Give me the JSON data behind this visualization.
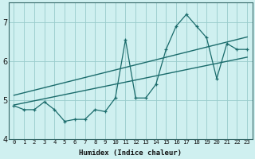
{
  "xlabel": "Humidex (Indice chaleur)",
  "background_color": "#cff0f0",
  "grid_color": "#99cccc",
  "line_color": "#1a6b6b",
  "x_data": [
    0,
    1,
    2,
    3,
    4,
    5,
    6,
    7,
    8,
    9,
    10,
    11,
    12,
    13,
    14,
    15,
    16,
    17,
    18,
    19,
    20,
    21,
    22,
    23
  ],
  "y_main": [
    4.85,
    4.75,
    4.75,
    4.95,
    4.75,
    4.45,
    4.5,
    4.5,
    4.75,
    4.7,
    5.05,
    6.55,
    5.05,
    5.05,
    5.4,
    6.3,
    6.9,
    7.2,
    6.9,
    6.6,
    5.55,
    6.45,
    6.3,
    6.3
  ],
  "reg_lower_start": 4.87,
  "reg_lower_end": 6.1,
  "reg_upper_start": 5.12,
  "reg_upper_end": 6.62,
  "ylim": [
    4.0,
    7.5
  ],
  "xlim": [
    -0.5,
    23.5
  ],
  "yticks": [
    4,
    5,
    6,
    7
  ],
  "xticks": [
    0,
    1,
    2,
    3,
    4,
    5,
    6,
    7,
    8,
    9,
    10,
    11,
    12,
    13,
    14,
    15,
    16,
    17,
    18,
    19,
    20,
    21,
    22,
    23
  ],
  "xlabel_fontsize": 6.5,
  "tick_fontsize_x": 5.2,
  "tick_fontsize_y": 7.0
}
